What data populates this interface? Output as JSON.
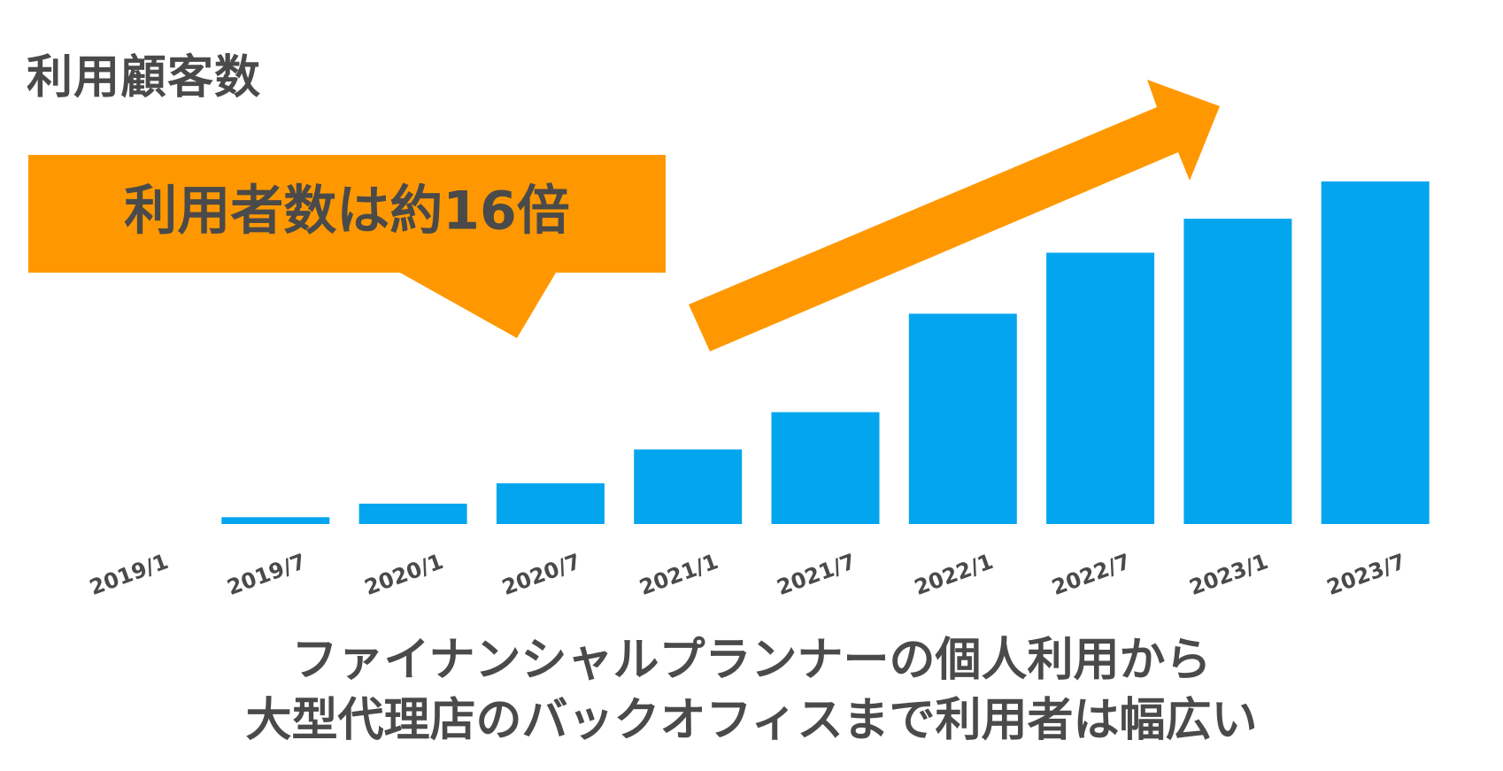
{
  "page": {
    "title": "利用顧客数",
    "callout_text": "利用者数は約16倍",
    "caption_lines": [
      "ファイナンシャルプランナーの個人利用から",
      "大型代理店のバックオフィスまで利用者は幅広い"
    ]
  },
  "colors": {
    "bar": "#03A6EE",
    "accent": "#FF9800",
    "text": "#4A4A4A"
  },
  "chart_data": {
    "type": "bar",
    "title": "利用顧客数",
    "annotation": "利用者数は約16倍",
    "categories": [
      "2019/1",
      "2019/7",
      "2020/1",
      "2020/7",
      "2021/1",
      "2021/7",
      "2022/1",
      "2022/7",
      "2023/1",
      "2023/7"
    ],
    "values": [
      0,
      2,
      6,
      12,
      22,
      33,
      62,
      80,
      90,
      101
    ],
    "xlabel": "",
    "ylabel": "",
    "ylim": [
      0,
      101
    ],
    "grid": false,
    "legend": "none"
  }
}
